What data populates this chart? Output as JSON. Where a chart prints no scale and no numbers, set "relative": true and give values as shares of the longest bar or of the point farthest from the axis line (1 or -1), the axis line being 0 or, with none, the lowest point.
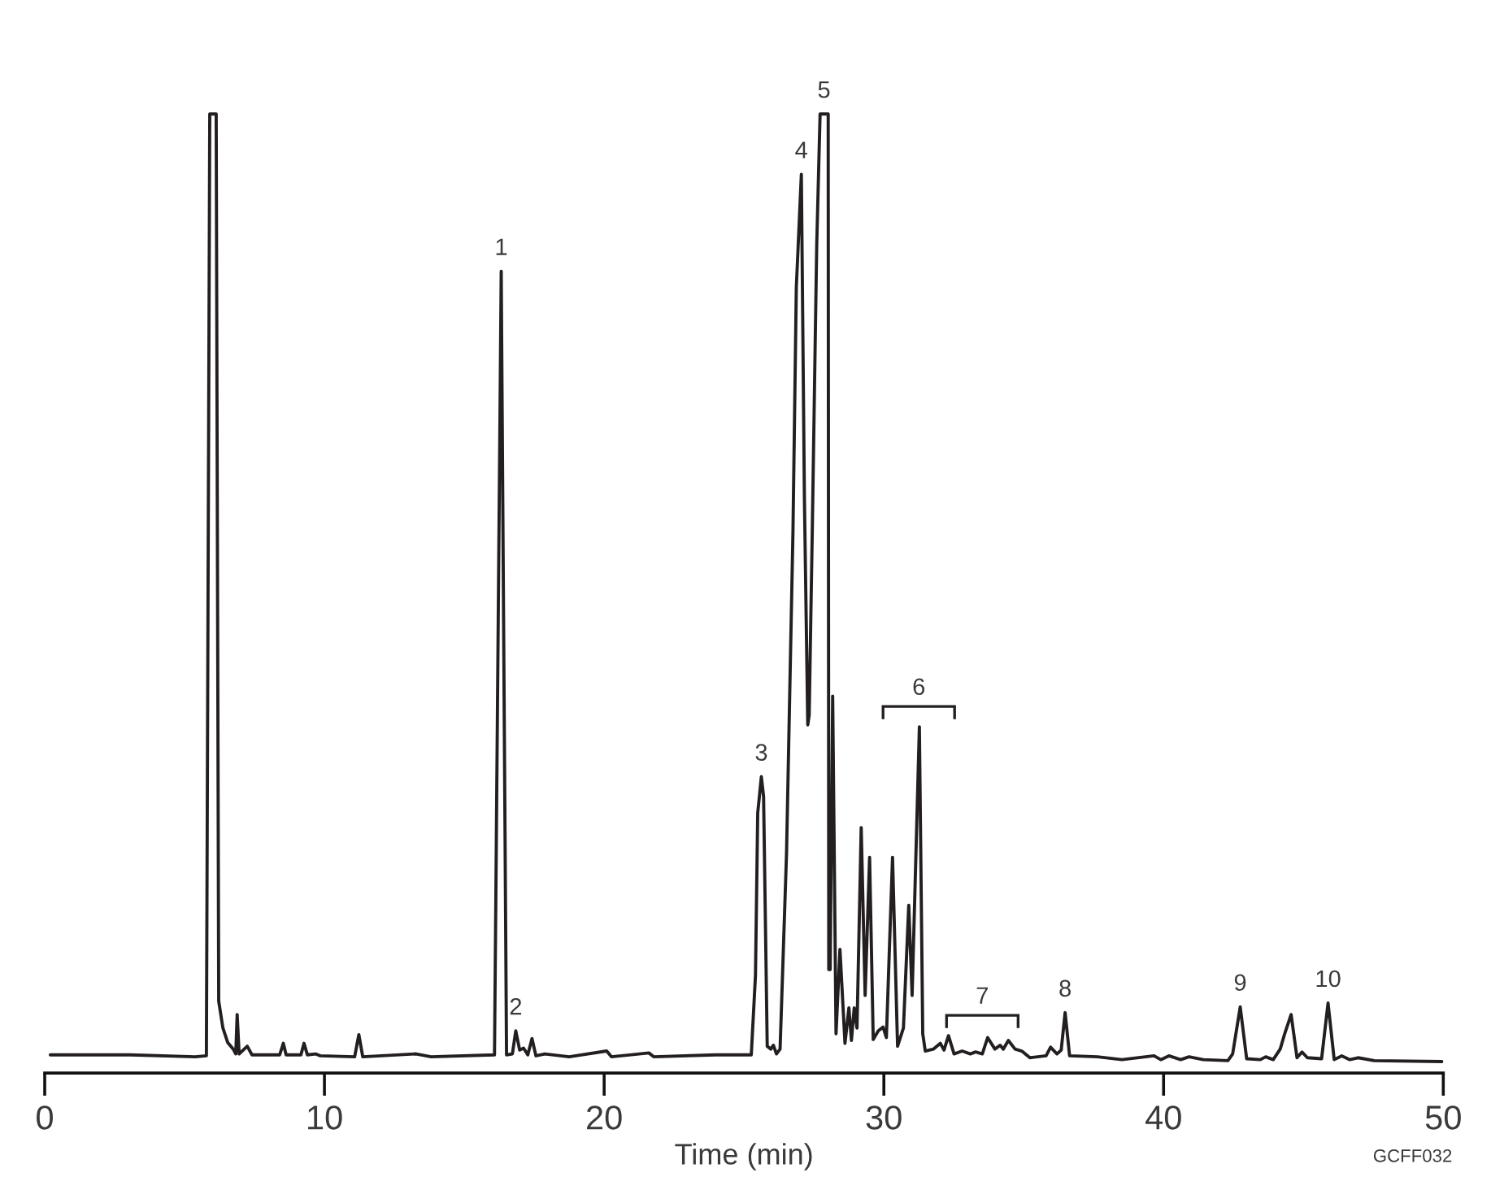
{
  "chart_data": {
    "type": "line",
    "relative": true,
    "xlabel": "Time (min)",
    "xlim": [
      0,
      50
    ],
    "xticks": [
      0,
      10,
      20,
      30,
      40,
      50
    ],
    "tick_labels": "x",
    "x": [
      0.2,
      3.05,
      5.38,
      5.78,
      5.9,
      6.13,
      6.22,
      6.37,
      6.54,
      6.74,
      6.83,
      6.88,
      6.95,
      7.24,
      7.41,
      8.4,
      8.53,
      8.63,
      9.16,
      9.27,
      9.39,
      9.68,
      9.85,
      11.08,
      11.23,
      11.37,
      13.28,
      13.81,
      16.08,
      16.32,
      16.51,
      16.72,
      16.84,
      16.98,
      17.12,
      17.27,
      17.42,
      17.56,
      17.88,
      18.75,
      20.09,
      20.26,
      21.6,
      21.77,
      23.98,
      25.26,
      25.41,
      25.49,
      25.62,
      25.7,
      25.83,
      25.96,
      26.05,
      26.16,
      26.29,
      26.52,
      26.75,
      26.87,
      27.05,
      27.16,
      27.28,
      27.33,
      27.44,
      27.6,
      27.72,
      28.01,
      28.03,
      28.08,
      28.17,
      28.29,
      28.43,
      28.61,
      28.75,
      28.84,
      28.94,
      29.04,
      29.19,
      29.33,
      29.49,
      29.62,
      29.8,
      29.97,
      30.09,
      30.31,
      30.49,
      30.7,
      30.89,
      31.01,
      31.27,
      31.39,
      31.48,
      31.77,
      32.02,
      32.15,
      32.31,
      32.51,
      32.8,
      33.09,
      33.28,
      33.52,
      33.71,
      33.97,
      34.16,
      34.27,
      34.45,
      34.69,
      34.93,
      35.22,
      35.8,
      35.96,
      36.19,
      36.34,
      36.48,
      36.64,
      37.64,
      38.51,
      39.66,
      39.9,
      40.19,
      40.61,
      40.91,
      41.42,
      42.3,
      42.47,
      42.74,
      42.97,
      43.46,
      43.65,
      43.92,
      44.17,
      44.33,
      44.56,
      44.77,
      44.95,
      45.14,
      45.65,
      45.88,
      46.1,
      46.37,
      46.66,
      46.95,
      47.53,
      49.95
    ],
    "series": [
      {
        "color": "#231f20",
        "values": [
          0.019,
          0.019,
          0.017,
          0.018,
          1.0,
          1.0,
          0.075,
          0.047,
          0.032,
          0.025,
          0.02,
          0.061,
          0.02,
          0.028,
          0.019,
          0.019,
          0.031,
          0.019,
          0.019,
          0.031,
          0.019,
          0.02,
          0.018,
          0.017,
          0.04,
          0.017,
          0.02,
          0.017,
          0.019,
          0.836,
          0.019,
          0.02,
          0.044,
          0.024,
          0.026,
          0.019,
          0.036,
          0.018,
          0.02,
          0.017,
          0.023,
          0.017,
          0.021,
          0.017,
          0.019,
          0.019,
          0.102,
          0.271,
          0.309,
          0.288,
          0.028,
          0.025,
          0.029,
          0.02,
          0.025,
          0.229,
          0.564,
          0.819,
          0.937,
          0.598,
          0.363,
          0.373,
          0.564,
          0.864,
          1.0,
          1.0,
          0.108,
          0.108,
          0.393,
          0.041,
          0.129,
          0.031,
          0.068,
          0.034,
          0.068,
          0.047,
          0.256,
          0.081,
          0.225,
          0.035,
          0.044,
          0.048,
          0.037,
          0.225,
          0.028,
          0.047,
          0.175,
          0.081,
          0.361,
          0.041,
          0.023,
          0.025,
          0.031,
          0.024,
          0.039,
          0.02,
          0.023,
          0.02,
          0.022,
          0.02,
          0.037,
          0.025,
          0.029,
          0.025,
          0.034,
          0.025,
          0.023,
          0.016,
          0.018,
          0.027,
          0.02,
          0.024,
          0.063,
          0.018,
          0.017,
          0.014,
          0.018,
          0.014,
          0.018,
          0.014,
          0.017,
          0.014,
          0.013,
          0.02,
          0.069,
          0.015,
          0.014,
          0.017,
          0.014,
          0.025,
          0.041,
          0.061,
          0.016,
          0.022,
          0.016,
          0.015,
          0.073,
          0.014,
          0.018,
          0.014,
          0.016,
          0.013,
          0.012
        ]
      }
    ],
    "annotations": [
      {
        "text": "1",
        "x": 16.32,
        "y": 0.836
      },
      {
        "text": "2",
        "x": 16.84,
        "y": 0.044
      },
      {
        "text": "3",
        "x": 25.62,
        "y": 0.309
      },
      {
        "text": "4",
        "x": 27.05,
        "y": 0.937
      },
      {
        "text": "5",
        "x": 27.86,
        "y": 1.0
      },
      {
        "text": "6",
        "x": 31.25,
        "y": 0.339
      },
      {
        "text": "7",
        "x": 33.52,
        "y": 0.02
      },
      {
        "text": "8",
        "x": 36.48,
        "y": 0.063
      },
      {
        "text": "9",
        "x": 42.74,
        "y": 0.069
      },
      {
        "text": "10",
        "x": 45.88,
        "y": 0.073
      },
      "GCFF032"
    ]
  }
}
